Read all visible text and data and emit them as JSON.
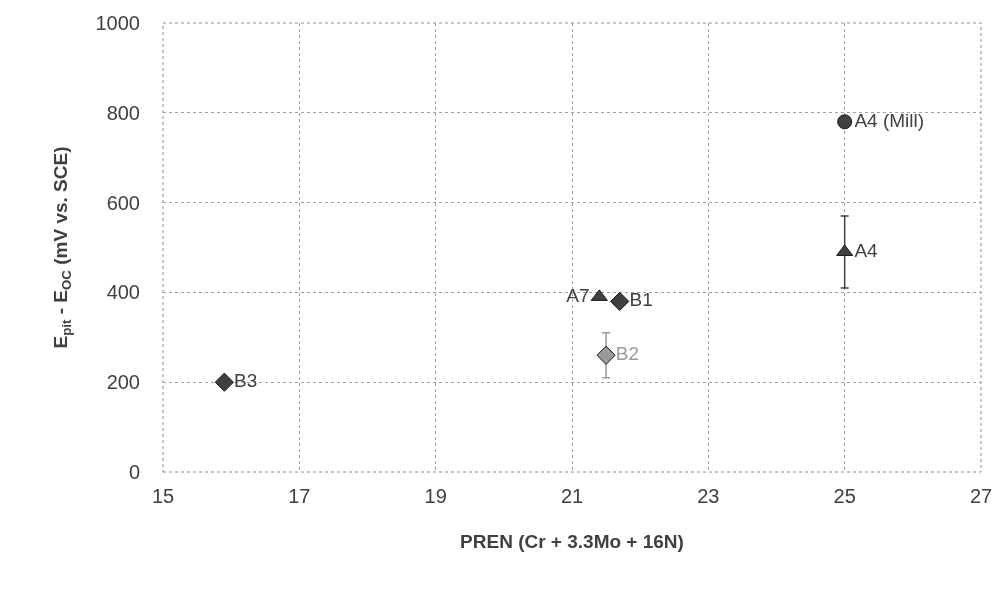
{
  "chart_data": {
    "type": "scatter",
    "xlabel": "PREN (Cr + 3.3Mo + 16N)",
    "ylabel": "E$_{pit}$ - E$_{OC}$ (mV vs. SCE)",
    "xlim": [
      15,
      27
    ],
    "xticks": [
      15,
      17,
      19,
      21,
      23,
      25,
      27
    ],
    "ylim": [
      0,
      1000
    ],
    "yticks": [
      0,
      200,
      400,
      600,
      800,
      1000
    ],
    "grid": true,
    "series": [
      {
        "name": "B3",
        "color": "#404040",
        "marker": "diamond",
        "x": [
          15.9
        ],
        "values": [
          200
        ]
      },
      {
        "name": "A7",
        "color": "#404040",
        "marker": "triangle",
        "x": [
          21.4
        ],
        "values": [
          390
        ]
      },
      {
        "name": "B1",
        "color": "#404040",
        "marker": "diamond",
        "x": [
          21.7
        ],
        "values": [
          380
        ]
      },
      {
        "name": "B2",
        "color": "#9a9a9a",
        "marker": "diamond",
        "x": [
          21.5
        ],
        "values": [
          260
        ],
        "errors": [
          50
        ]
      },
      {
        "name": "A4 (Mill)",
        "color": "#404040",
        "marker": "circle",
        "x": [
          25.0
        ],
        "values": [
          780
        ]
      },
      {
        "name": "A4",
        "color": "#404040",
        "marker": "triangle",
        "x": [
          25.0
        ],
        "values": [
          490
        ],
        "errors": [
          80
        ]
      }
    ]
  }
}
